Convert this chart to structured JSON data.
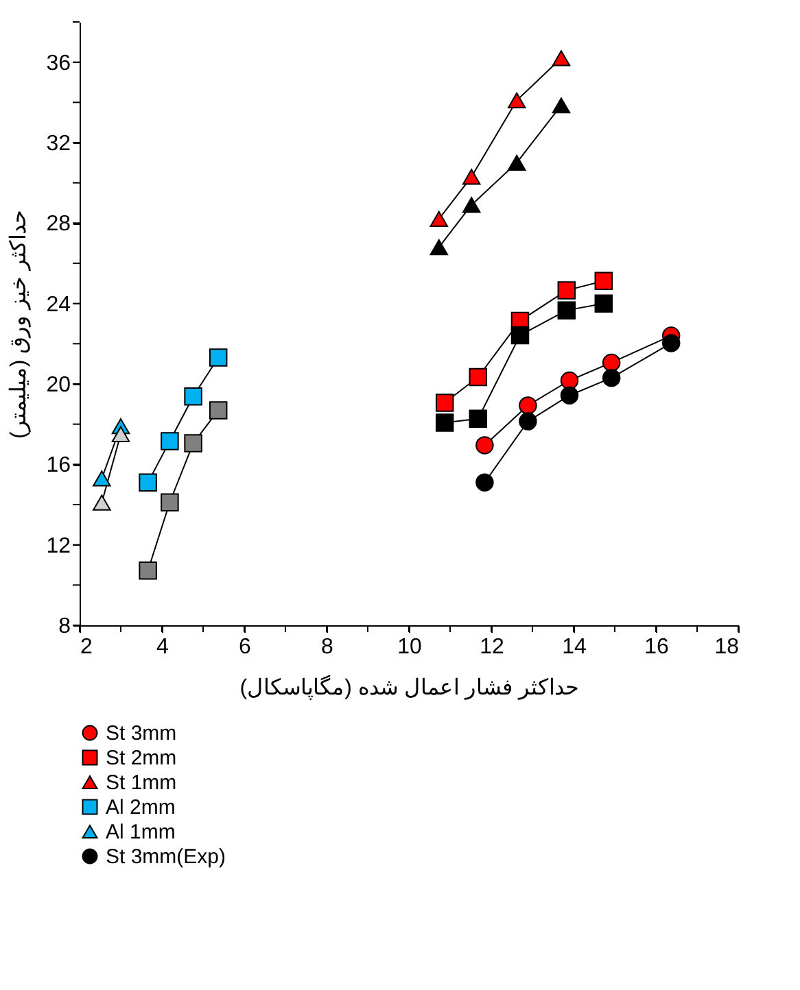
{
  "chart_data": {
    "type": "line",
    "xlabel": "حداکثر فشار اعمال شده (مگاپاسکال)",
    "ylabel": "حداکثر خیز ورق (میلیمتر)",
    "xlim": [
      2,
      18
    ],
    "ylim": [
      8,
      38
    ],
    "xticks": [
      2,
      {
        "value": 3,
        "label": null
      },
      4,
      {
        "value": 5,
        "label": null
      },
      6,
      {
        "value": 7,
        "label": null
      },
      8,
      {
        "value": 9,
        "label": null
      },
      10,
      {
        "value": 11,
        "label": null
      },
      12,
      {
        "value": 13,
        "label": null
      },
      14,
      {
        "value": 15,
        "label": null
      },
      16,
      {
        "value": 17,
        "label": null
      },
      18
    ],
    "yticks": [
      8,
      {
        "value": 10,
        "label": null
      },
      12,
      {
        "value": 14,
        "label": null
      },
      16,
      {
        "value": 18,
        "label": null
      },
      20,
      {
        "value": 22,
        "label": null
      },
      24,
      {
        "value": 26,
        "label": null
      },
      28,
      {
        "value": 30,
        "label": null
      },
      32,
      {
        "value": 34,
        "label": null
      },
      36,
      {
        "value": 38,
        "label": null
      }
    ],
    "grid": false,
    "legend": "bottom",
    "series": [
      {
        "name": "St 3mm",
        "color": "#ff0000",
        "marker": "circle",
        "x": [
          11.84,
          12.89,
          13.9,
          14.92,
          16.37
        ],
        "values": [
          16.95,
          18.93,
          20.17,
          21.06,
          22.4
        ]
      },
      {
        "name": "St 2mm",
        "color": "#ff0000",
        "marker": "square",
        "x": [
          10.87,
          11.68,
          12.7,
          13.83,
          14.73
        ],
        "values": [
          19.06,
          20.34,
          23.14,
          24.65,
          25.12
        ]
      },
      {
        "name": "St 1mm",
        "color": "#ff0000",
        "marker": "triangle",
        "x": [
          10.73,
          11.52,
          12.62,
          13.7
        ],
        "values": [
          28.2,
          30.3,
          34.1,
          36.2
        ]
      },
      {
        "name": "Al 2mm",
        "color": "#00b0f0",
        "marker": "square",
        "x": [
          3.66,
          4.19,
          4.76,
          5.37
        ],
        "values": [
          15.1,
          17.15,
          19.38,
          21.31
        ]
      },
      {
        "name": "Al 1mm",
        "color": "#00b0f0",
        "marker": "triangle",
        "x": [
          2.54,
          3.0
        ],
        "values": [
          15.3,
          17.9
        ]
      },
      {
        "name": "St 3mm(Exp)",
        "color": "#000000",
        "marker": "circle",
        "x": [
          11.84,
          12.89,
          13.9,
          14.92,
          16.37
        ],
        "values": [
          15.1,
          18.14,
          19.43,
          20.3,
          22.03
        ]
      },
      {
        "color": "#000000",
        "marker": "square",
        "x": [
          10.87,
          11.68,
          12.7,
          13.83,
          14.73
        ],
        "values": [
          18.07,
          18.27,
          22.42,
          23.66,
          24.0
        ]
      },
      {
        "color": "#000000",
        "marker": "triangle",
        "x": [
          10.73,
          11.52,
          12.62,
          13.7
        ],
        "values": [
          26.8,
          28.9,
          31.0,
          33.85
        ]
      },
      {
        "color": "#808080",
        "marker": "square",
        "x": [
          3.66,
          4.19,
          4.76,
          5.37
        ],
        "values": [
          10.72,
          14.11,
          17.05,
          18.69
        ]
      },
      {
        "color": "#d0d0d0",
        "marker": "triangle",
        "x": [
          2.54,
          3.0
        ],
        "values": [
          14.1,
          17.5
        ]
      }
    ]
  }
}
